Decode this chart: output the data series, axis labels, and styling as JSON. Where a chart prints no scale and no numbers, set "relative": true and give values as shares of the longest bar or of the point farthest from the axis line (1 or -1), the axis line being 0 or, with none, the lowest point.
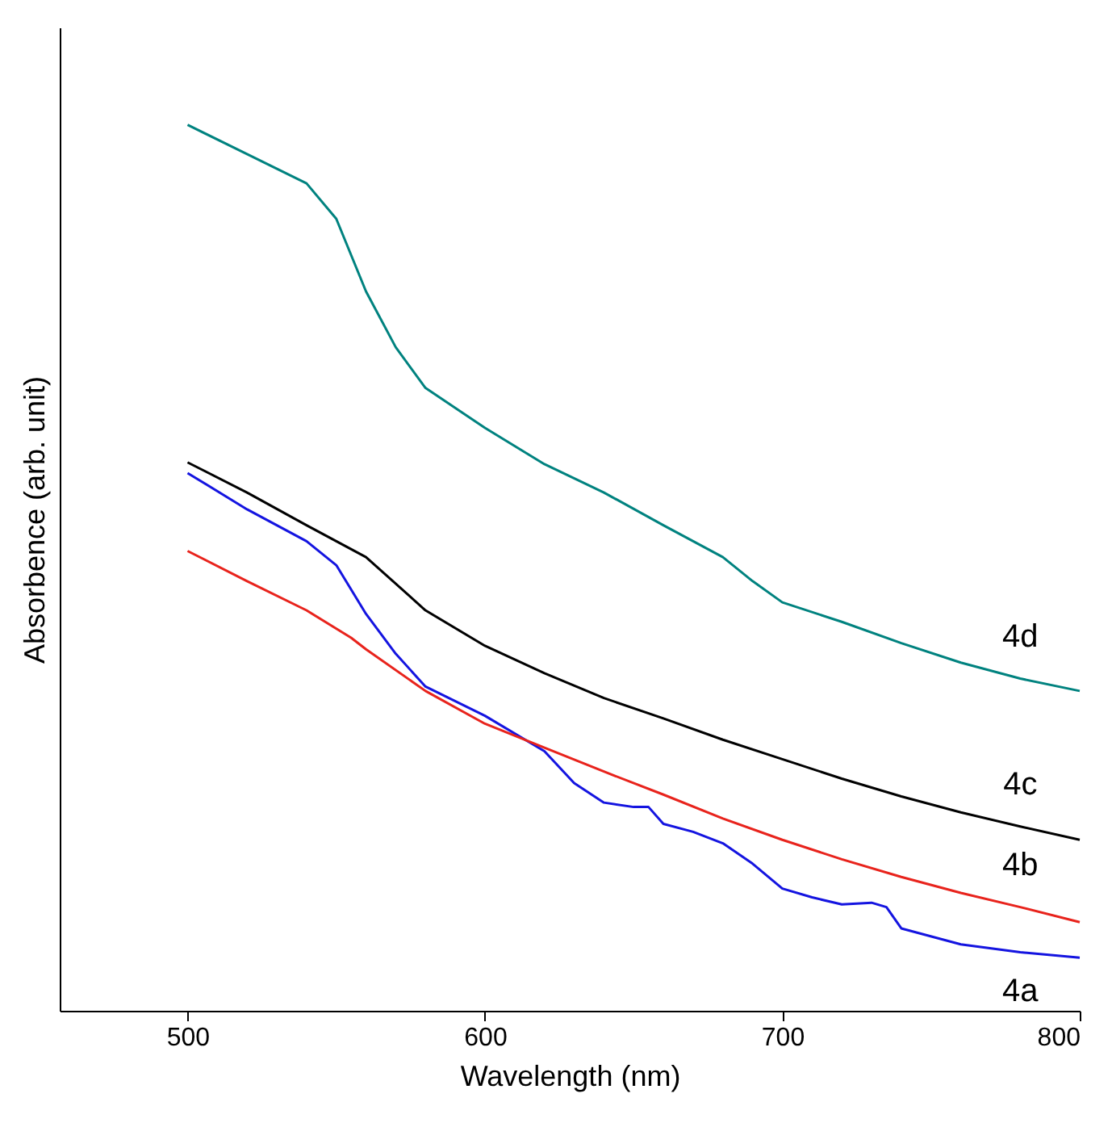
{
  "chart_data": {
    "type": "line",
    "relative": true,
    "xlabel": "Wavelength (nm)",
    "ylabel": "Absorbence (arb. unit)",
    "xlim": [
      457,
      800
    ],
    "xticks": [
      500,
      600,
      700,
      800
    ],
    "tick_labels": "x",
    "grid": false,
    "series": [
      {
        "name": "4a",
        "color": "#1414e0",
        "x": [
          500,
          520,
          540,
          550,
          560,
          570,
          580,
          600,
          620,
          630,
          640,
          650,
          655,
          660,
          670,
          680,
          690,
          700,
          710,
          720,
          730,
          735,
          740,
          760,
          780,
          800
        ],
        "values": [
          0.607,
          0.566,
          0.53,
          0.503,
          0.448,
          0.403,
          0.366,
          0.333,
          0.293,
          0.257,
          0.235,
          0.23,
          0.23,
          0.211,
          0.202,
          0.189,
          0.166,
          0.138,
          0.128,
          0.12,
          0.122,
          0.117,
          0.093,
          0.075,
          0.066,
          0.06
        ]
      },
      {
        "name": "4b",
        "color": "#e8231c",
        "x": [
          500,
          520,
          540,
          555,
          560,
          580,
          600,
          620,
          640,
          660,
          680,
          700,
          720,
          740,
          760,
          780,
          800
        ],
        "values": [
          0.519,
          0.485,
          0.452,
          0.421,
          0.408,
          0.361,
          0.324,
          0.297,
          0.27,
          0.244,
          0.217,
          0.193,
          0.171,
          0.151,
          0.133,
          0.117,
          0.1
        ]
      },
      {
        "name": "4c",
        "color": "#000000",
        "x": [
          500,
          520,
          540,
          560,
          580,
          600,
          620,
          640,
          660,
          680,
          700,
          720,
          740,
          760,
          780,
          800
        ],
        "values": [
          0.619,
          0.585,
          0.548,
          0.512,
          0.452,
          0.412,
          0.381,
          0.353,
          0.33,
          0.306,
          0.284,
          0.262,
          0.242,
          0.224,
          0.208,
          0.193
        ]
      },
      {
        "name": "4d",
        "color": "#00827f",
        "x": [
          500,
          520,
          540,
          550,
          560,
          570,
          580,
          600,
          620,
          640,
          660,
          680,
          690,
          700,
          720,
          740,
          760,
          780,
          800
        ],
        "values": [
          1.0,
          0.967,
          0.934,
          0.894,
          0.812,
          0.749,
          0.703,
          0.658,
          0.617,
          0.585,
          0.548,
          0.512,
          0.485,
          0.461,
          0.439,
          0.415,
          0.393,
          0.375,
          0.361
        ]
      }
    ]
  }
}
